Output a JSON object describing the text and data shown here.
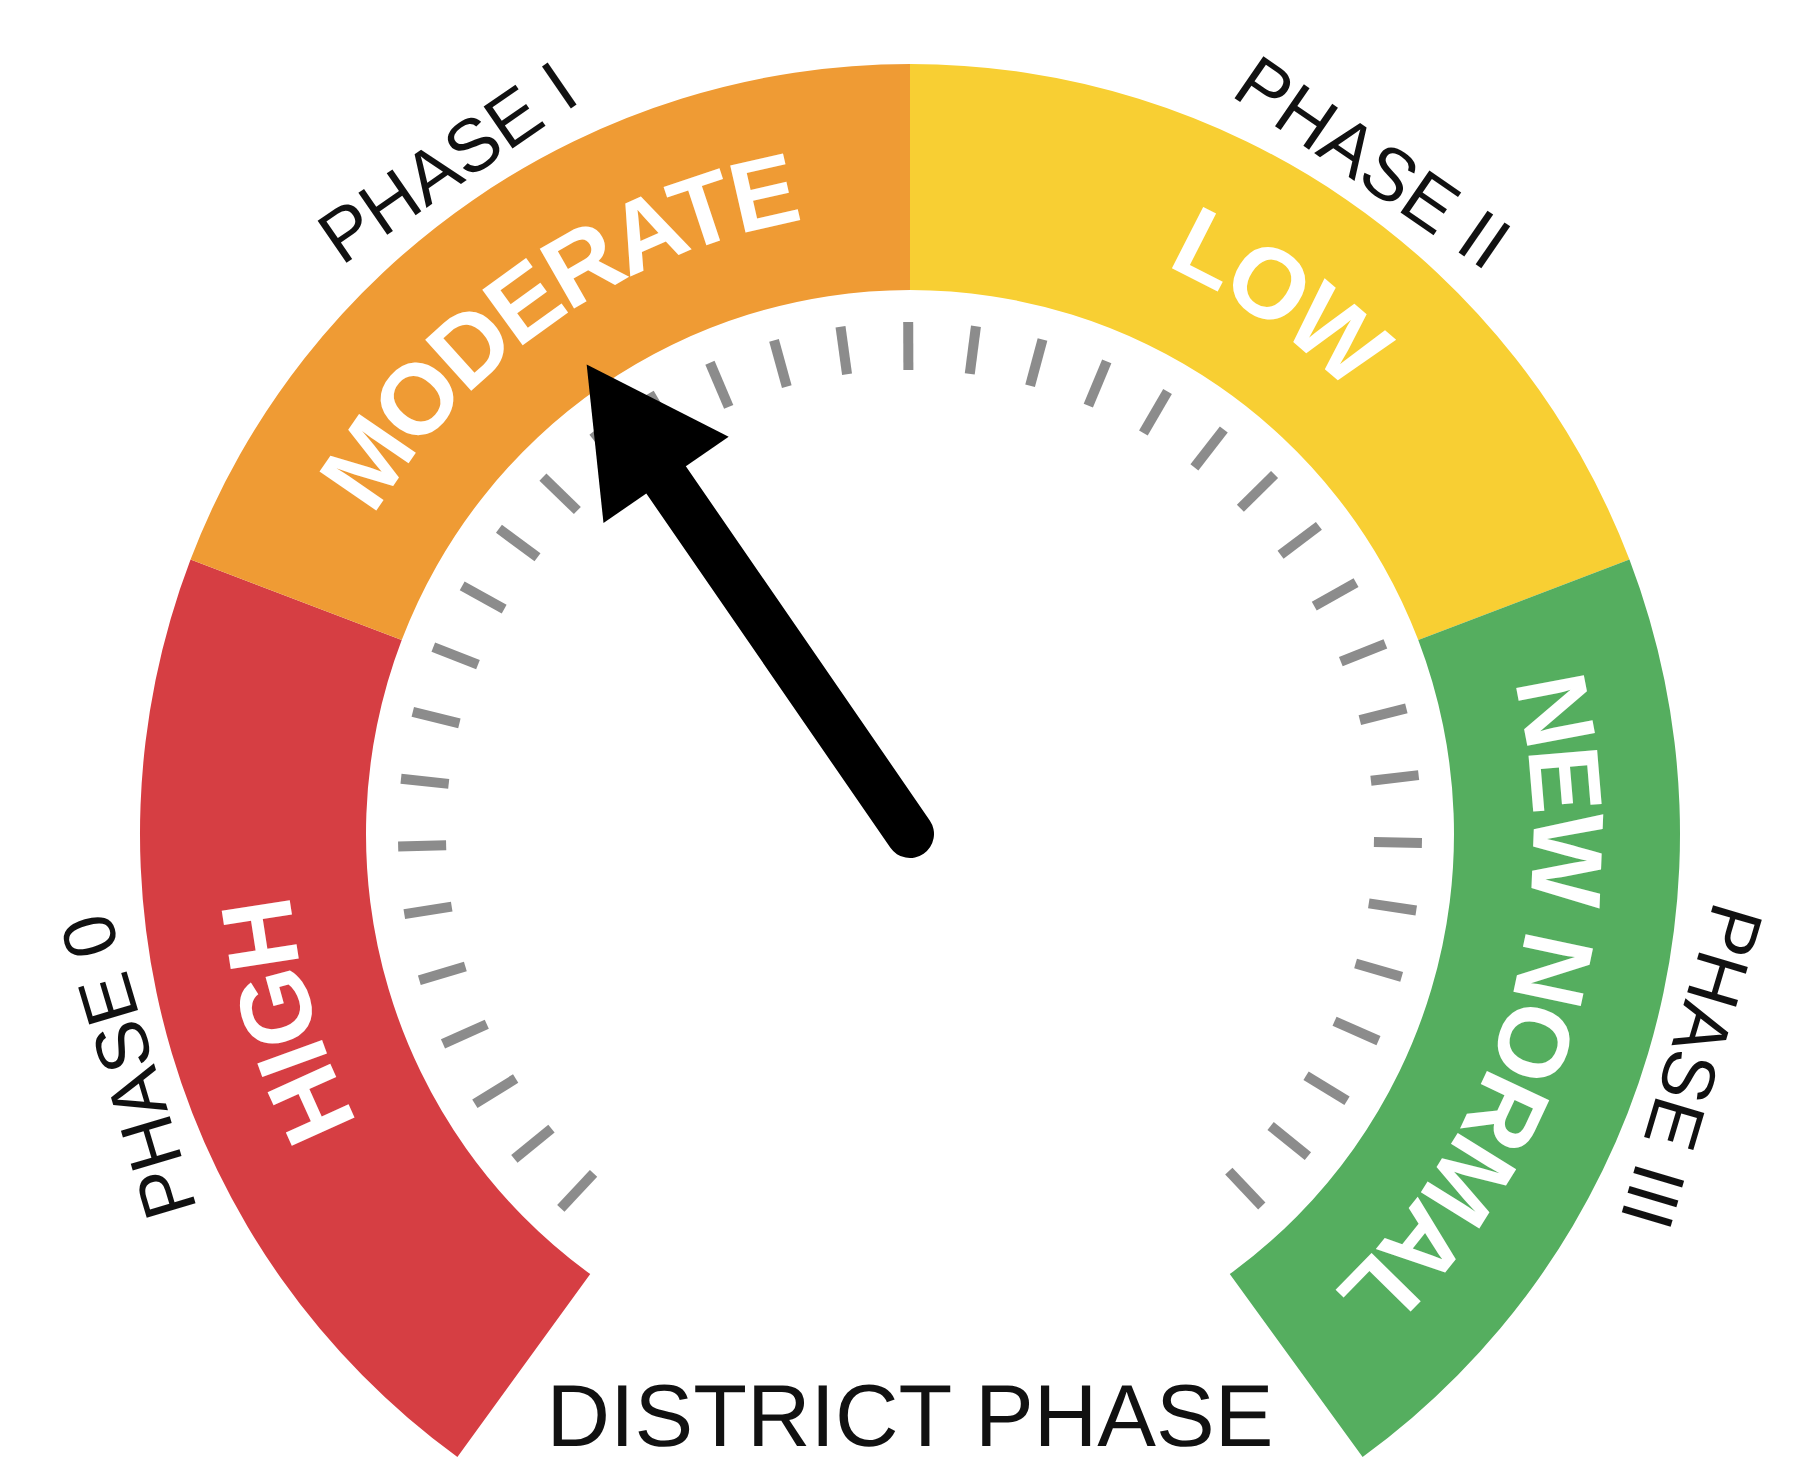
{
  "chart_data": {
    "type": "donut",
    "title": "DISTRICT PHASE",
    "categories": [
      "HIGH",
      "MODERATE",
      "LOW",
      "NEW NORMAL"
    ],
    "values": [
      26,
      24,
      24,
      26
    ],
    "colors": [
      "#d63e43",
      "#ef9b34",
      "#f8cf33",
      "#55ae5f"
    ],
    "needle": "MODERATE",
    "annotations": [
      "PHASE 0",
      "PHASE I",
      "PHASE II",
      "PHASE III"
    ]
  }
}
